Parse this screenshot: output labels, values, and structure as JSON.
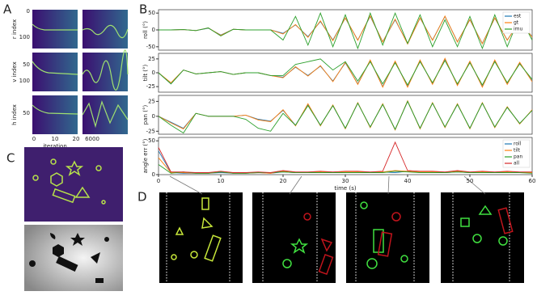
{
  "panels": [
    "A",
    "B",
    "C",
    "D"
  ],
  "panel_a": {
    "ylabels": [
      "r index",
      "v index",
      "h index"
    ],
    "yticks": [
      [
        "0",
        "100"
      ],
      [
        "50",
        "100"
      ],
      [
        "50"
      ]
    ],
    "xticks_left": [
      "0",
      "10",
      "20"
    ],
    "xticks_right": [
      "6000"
    ],
    "xlabel": "iteration"
  },
  "chart_data": [
    {
      "type": "line",
      "ylabel": "roll (°)",
      "legend": "upper right",
      "x": [
        0,
        2,
        4,
        6,
        8,
        10,
        12,
        14,
        16,
        18,
        20,
        22,
        24,
        26,
        28,
        30,
        32,
        34,
        36,
        38,
        40,
        42,
        44,
        46,
        48,
        50,
        52,
        54,
        56,
        58,
        60
      ],
      "xlim": [
        0,
        60
      ],
      "ylim": [
        -60,
        60
      ],
      "yticks": [
        -50,
        0,
        50
      ],
      "series": [
        {
          "name": "est",
          "color": "#1f77b4",
          "values": [
            0,
            0,
            1,
            -2,
            5,
            -15,
            2,
            0,
            0,
            0,
            -10,
            15,
            -20,
            25,
            -30,
            35,
            -30,
            40,
            -35,
            30,
            -40,
            35,
            -30,
            40,
            -35,
            30,
            -40,
            35,
            -30,
            25,
            -20
          ]
        },
        {
          "name": "gt",
          "color": "#ff7f0e",
          "values": [
            0,
            0,
            1,
            -2,
            6,
            -16,
            2,
            0,
            0,
            0,
            -12,
            16,
            -22,
            27,
            -32,
            36,
            -31,
            42,
            -36,
            32,
            -42,
            36,
            -31,
            41,
            -36,
            31,
            -41,
            36,
            -31,
            26,
            -21
          ]
        },
        {
          "name": "imu",
          "color": "#2ca02c",
          "values": [
            0,
            0,
            1,
            -2,
            6,
            -18,
            2,
            0,
            0,
            0,
            -30,
            40,
            -45,
            50,
            -50,
            45,
            -55,
            50,
            -45,
            50,
            -40,
            45,
            -50,
            30,
            -50,
            40,
            -55,
            45,
            -50,
            40,
            -30
          ]
        }
      ]
    },
    {
      "type": "line",
      "ylabel": "tilt (°)",
      "x": [
        0,
        2,
        4,
        6,
        8,
        10,
        12,
        14,
        16,
        18,
        20,
        22,
        24,
        26,
        28,
        30,
        32,
        34,
        36,
        38,
        40,
        42,
        44,
        46,
        48,
        50,
        52,
        54,
        56,
        58,
        60
      ],
      "xlim": [
        0,
        60
      ],
      "ylim": [
        -35,
        35
      ],
      "yticks": [
        -25,
        0,
        25
      ],
      "series": [
        {
          "name": "est",
          "color": "#1f77b4",
          "values": [
            0,
            -20,
            5,
            -2,
            0,
            2,
            -3,
            0,
            0,
            -5,
            -8,
            10,
            -5,
            12,
            -15,
            18,
            -20,
            22,
            -25,
            20,
            -25,
            22,
            -20,
            25,
            -22,
            20,
            -25,
            22,
            -20,
            18,
            -15
          ]
        },
        {
          "name": "gt",
          "color": "#ff7f0e",
          "values": [
            0,
            -18,
            5,
            -2,
            0,
            2,
            -3,
            0,
            0,
            -5,
            -9,
            11,
            -6,
            13,
            -16,
            19,
            -21,
            23,
            -26,
            21,
            -26,
            23,
            -21,
            26,
            -23,
            21,
            -26,
            23,
            -21,
            19,
            -16
          ]
        },
        {
          "name": "imu",
          "color": "#2ca02c",
          "values": [
            0,
            -20,
            5,
            -2,
            0,
            2,
            -3,
            0,
            0,
            -5,
            -5,
            15,
            20,
            25,
            5,
            20,
            -15,
            20,
            -20,
            18,
            -22,
            20,
            -18,
            22,
            -20,
            18,
            -22,
            20,
            -18,
            16,
            -12
          ]
        }
      ]
    },
    {
      "type": "line",
      "ylabel": "pan (°)",
      "x": [
        0,
        2,
        4,
        6,
        8,
        10,
        12,
        14,
        16,
        18,
        20,
        22,
        24,
        26,
        28,
        30,
        32,
        34,
        36,
        38,
        40,
        42,
        44,
        46,
        48,
        50,
        52,
        54,
        56,
        58,
        60
      ],
      "xlim": [
        0,
        60
      ],
      "ylim": [
        -30,
        35
      ],
      "yticks": [
        -25,
        0,
        25
      ],
      "series": [
        {
          "name": "est",
          "color": "#1f77b4",
          "values": [
            0,
            -10,
            -20,
            5,
            0,
            0,
            0,
            2,
            -5,
            -8,
            10,
            -15,
            20,
            -15,
            18,
            -20,
            22,
            -18,
            20,
            -22,
            25,
            -20,
            22,
            -18,
            20,
            -20,
            22,
            -18,
            15,
            -12,
            10
          ]
        },
        {
          "name": "gt",
          "color": "#ff7f0e",
          "values": [
            0,
            -11,
            -21,
            5,
            0,
            0,
            0,
            2,
            -6,
            -9,
            11,
            -16,
            21,
            -16,
            19,
            -21,
            23,
            -19,
            21,
            -23,
            26,
            -21,
            23,
            -19,
            21,
            -21,
            23,
            -19,
            16,
            -13,
            11
          ]
        },
        {
          "name": "imu",
          "color": "#2ca02c",
          "values": [
            0,
            -15,
            -28,
            5,
            0,
            0,
            0,
            -5,
            -20,
            -25,
            5,
            -15,
            18,
            -15,
            18,
            -20,
            22,
            -18,
            20,
            -22,
            25,
            -20,
            22,
            -18,
            20,
            -20,
            22,
            -18,
            15,
            -12,
            10
          ]
        }
      ]
    },
    {
      "type": "line",
      "ylabel": "angle err (°)",
      "xlabel": "time (s)",
      "legend": "upper right",
      "x": [
        0,
        2,
        4,
        6,
        8,
        10,
        12,
        14,
        16,
        18,
        20,
        22,
        24,
        26,
        28,
        30,
        32,
        34,
        36,
        38,
        40,
        42,
        44,
        46,
        48,
        50,
        52,
        54,
        56,
        58,
        60
      ],
      "xlim": [
        0,
        60
      ],
      "ylim": [
        0,
        55
      ],
      "yticks": [
        0,
        50
      ],
      "xticks": [
        0,
        10,
        20,
        30,
        40,
        50,
        60
      ],
      "series": [
        {
          "name": "roll",
          "color": "#1f77b4",
          "values": [
            35,
            3,
            2,
            2,
            2,
            3,
            2,
            2,
            3,
            2,
            4,
            3,
            3,
            4,
            3,
            3,
            4,
            3,
            4,
            3,
            5,
            3,
            4,
            3,
            4,
            3,
            4,
            3,
            4,
            3,
            3
          ]
        },
        {
          "name": "tilt",
          "color": "#ff7f0e",
          "values": [
            25,
            3,
            3,
            2,
            2,
            4,
            2,
            2,
            3,
            2,
            5,
            3,
            3,
            4,
            3,
            4,
            4,
            3,
            4,
            6,
            5,
            4,
            4,
            3,
            5,
            3,
            4,
            3,
            4,
            3,
            3
          ]
        },
        {
          "name": "pan",
          "color": "#2ca02c",
          "values": [
            15,
            2,
            4,
            2,
            2,
            4,
            2,
            2,
            3,
            3,
            4,
            3,
            3,
            3,
            3,
            3,
            3,
            3,
            3,
            5,
            4,
            3,
            3,
            3,
            4,
            3,
            3,
            3,
            3,
            3,
            2
          ]
        },
        {
          "name": "all",
          "color": "#d62728",
          "values": [
            40,
            4,
            4,
            3,
            3,
            5,
            3,
            3,
            4,
            3,
            6,
            4,
            4,
            5,
            4,
            5,
            5,
            4,
            5,
            48,
            6,
            5,
            5,
            4,
            6,
            4,
            5,
            4,
            5,
            4,
            4
          ]
        }
      ]
    }
  ]
}
